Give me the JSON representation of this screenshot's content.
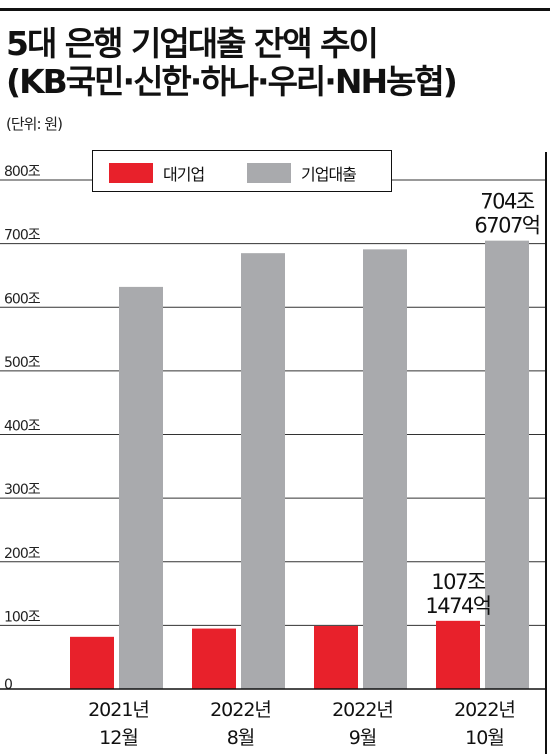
{
  "header": {
    "title_line1": "5대 은행 기업대출 잔액 추이",
    "title_line2": "(KB국민·신한·하나·우리·NH농협)",
    "unit": "(단위: 원)"
  },
  "legend": {
    "large_corp": "대기업",
    "corp_loans": "기업대출"
  },
  "colors": {
    "large_corp": "#e8212b",
    "corp_loans": "#a9aaad"
  },
  "chart_data": {
    "type": "bar",
    "title": "5대 은행 기업대출 잔액 추이",
    "categories": [
      [
        "2021년",
        "12월"
      ],
      [
        "2022년",
        "8월"
      ],
      [
        "2022년",
        "9월"
      ],
      [
        "2022년",
        "10월"
      ]
    ],
    "series": [
      {
        "name": "대기업",
        "values": [
          82,
          95,
          99,
          107.15
        ]
      },
      {
        "name": "기업대출",
        "values": [
          632,
          685,
          691,
          704.67
        ]
      }
    ],
    "y_ticks": [
      0,
      100,
      200,
      300,
      400,
      500,
      600,
      700,
      800
    ],
    "y_tick_labels": [
      "0",
      "100조",
      "200조",
      "300조",
      "400조",
      "500조",
      "600조",
      "700조",
      "800조"
    ],
    "ylim": [
      0,
      800
    ],
    "grid": true,
    "annotations": [
      {
        "series": 0,
        "index": 3,
        "lines": [
          "107조",
          "1474억"
        ]
      },
      {
        "series": 1,
        "index": 3,
        "lines": [
          "704조",
          "6707억"
        ]
      }
    ]
  }
}
